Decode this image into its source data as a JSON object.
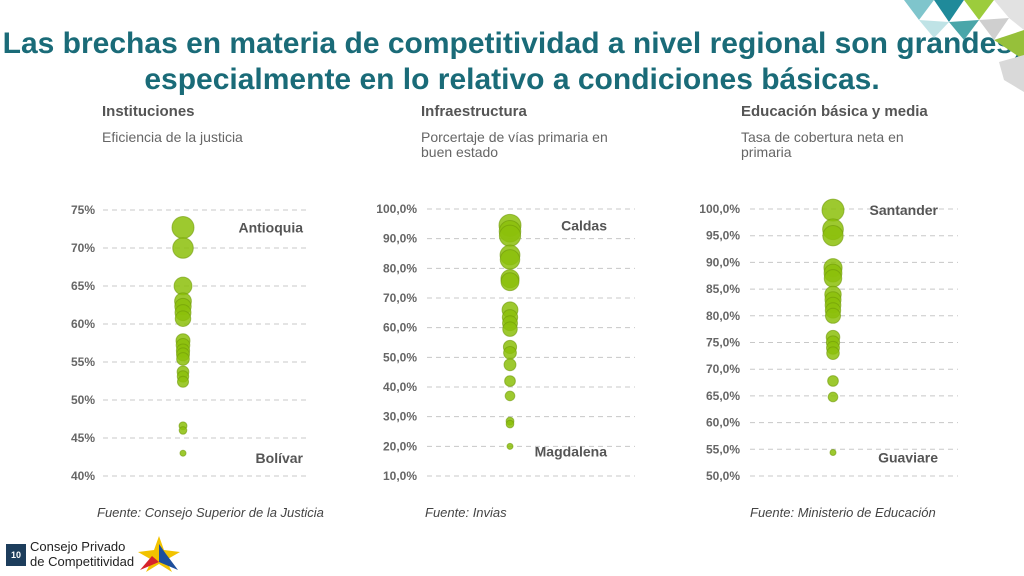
{
  "title": "Las brechas en materia de competitividad a nivel regional son grandes, especialmente en lo relativo a condiciones básicas.",
  "colors": {
    "title": "#1a6b78",
    "dot": "#8cbf0a",
    "dot_dark": "#6f9a08",
    "grid": "#c8c8c8"
  },
  "panels": [
    {
      "heading": "Instituciones",
      "subtitle": "Eficiencia de la justicia",
      "source": "Fuente: Consejo Superior de la Justicia"
    },
    {
      "heading": "Infraestructura",
      "subtitle": "Porcertaje de vías primaria en buen estado",
      "source": "Fuente: Invias"
    },
    {
      "heading": "Educación básica y media",
      "subtitle": "Tasa de cobertura neta en primaria",
      "source": "Fuente: Ministerio de Educación"
    }
  ],
  "logo": {
    "badge": "10",
    "line1": "Consejo Privado",
    "line2": "de Competitividad"
  },
  "chart_data": [
    {
      "type": "scatter",
      "ylim": [
        40,
        75
      ],
      "yticks": [
        "75%",
        "70%",
        "65%",
        "60%",
        "55%",
        "50%",
        "45%",
        "40%"
      ],
      "ytick_values": [
        75,
        70,
        65,
        60,
        55,
        50,
        45,
        40
      ],
      "values": [
        72.7,
        70.0,
        65.0,
        63.0,
        62.3,
        61.5,
        60.7,
        57.8,
        57.2,
        56.5,
        56.0,
        55.4,
        53.7,
        53.1,
        52.4,
        46.6,
        46.0,
        43.0
      ],
      "annotations": [
        {
          "text": "Antioquia",
          "y": 72.7
        },
        {
          "text": "Bolívar",
          "y": 43.0
        }
      ]
    },
    {
      "type": "scatter",
      "ylim": [
        10,
        100
      ],
      "yticks": [
        "100,0%",
        "90,0%",
        "80,0%",
        "70,0%",
        "60,0%",
        "50,0%",
        "40,0%",
        "30,0%",
        "20,0%",
        "10,0%"
      ],
      "ytick_values": [
        100,
        90,
        80,
        70,
        60,
        50,
        40,
        30,
        20,
        10
      ],
      "values": [
        94.5,
        92.5,
        91.0,
        84.5,
        83.0,
        76.5,
        75.5,
        66.0,
        63.5,
        61.5,
        59.5,
        53.5,
        51.5,
        47.5,
        42.0,
        37.0,
        28.5,
        27.5,
        20.0
      ],
      "annotations": [
        {
          "text": "Caldas",
          "y": 94.5
        },
        {
          "text": "Magdalena",
          "y": 20.0
        }
      ]
    },
    {
      "type": "scatter",
      "ylim": [
        50,
        100
      ],
      "yticks": [
        "100,0%",
        "95,0%",
        "90,0%",
        "85,0%",
        "80,0%",
        "75,0%",
        "70,0%",
        "65,0%",
        "60,0%",
        "55,0%",
        "50,0%"
      ],
      "ytick_values": [
        100,
        95,
        90,
        85,
        80,
        75,
        70,
        65,
        60,
        55,
        50
      ],
      "values": [
        99.8,
        96.2,
        95.0,
        89.0,
        88.0,
        87.0,
        84.0,
        83.0,
        82.0,
        81.0,
        80.0,
        76.0,
        75.0,
        74.0,
        73.0,
        67.8,
        64.8,
        54.4
      ],
      "annotations": [
        {
          "text": "Santander",
          "y": 99.8
        },
        {
          "text": "Guaviare",
          "y": 54.4
        }
      ]
    }
  ]
}
